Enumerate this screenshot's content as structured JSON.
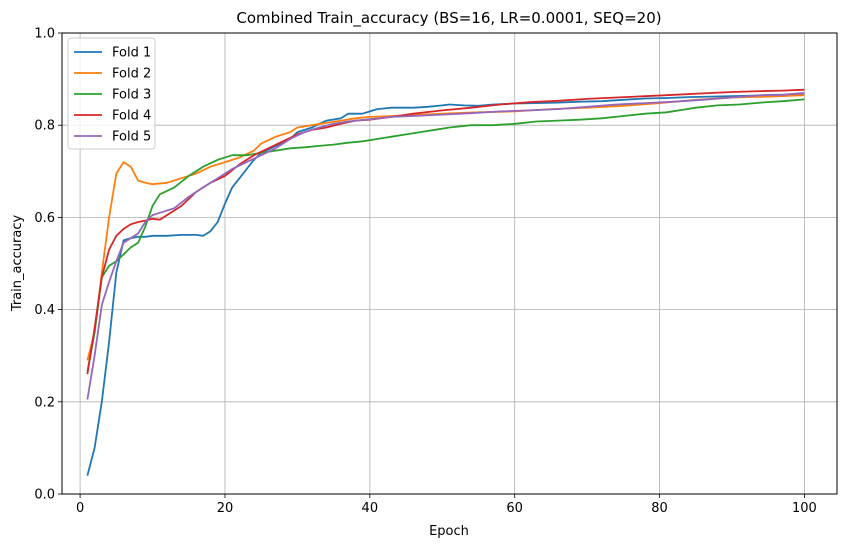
{
  "chart_data": {
    "type": "line",
    "title": "Combined Train_accuracy (BS=16, LR=0.0001, SEQ=20)",
    "xlabel": "Epoch",
    "ylabel": "Train_accuracy",
    "xlim": [
      -2.5,
      104.5
    ],
    "ylim": [
      0.0,
      1.0
    ],
    "xticks": [
      0,
      20,
      40,
      60,
      80,
      100
    ],
    "yticks": [
      0.0,
      0.2,
      0.4,
      0.6,
      0.8,
      1.0
    ],
    "xtick_labels": [
      "0",
      "20",
      "40",
      "60",
      "80",
      "100"
    ],
    "ytick_labels": [
      "0.0",
      "0.2",
      "0.4",
      "0.6",
      "0.8",
      "1.0"
    ],
    "grid": true,
    "legend_position": "top-left",
    "series": [
      {
        "name": "Fold 1",
        "color": "#1f77b4",
        "points": [
          [
            1,
            0.04
          ],
          [
            2,
            0.1
          ],
          [
            3,
            0.2
          ],
          [
            4,
            0.33
          ],
          [
            5,
            0.48
          ],
          [
            6,
            0.55
          ],
          [
            7,
            0.555
          ],
          [
            8,
            0.558
          ],
          [
            9,
            0.558
          ],
          [
            10,
            0.56
          ],
          [
            12,
            0.56
          ],
          [
            14,
            0.562
          ],
          [
            16,
            0.562
          ],
          [
            17,
            0.56
          ],
          [
            18,
            0.57
          ],
          [
            19,
            0.59
          ],
          [
            20,
            0.63
          ],
          [
            21,
            0.665
          ],
          [
            22,
            0.685
          ],
          [
            23,
            0.705
          ],
          [
            24,
            0.725
          ],
          [
            25,
            0.74
          ],
          [
            27,
            0.755
          ],
          [
            29,
            0.77
          ],
          [
            30,
            0.785
          ],
          [
            32,
            0.795
          ],
          [
            34,
            0.81
          ],
          [
            36,
            0.815
          ],
          [
            37,
            0.825
          ],
          [
            39,
            0.825
          ],
          [
            40,
            0.83
          ],
          [
            41,
            0.835
          ],
          [
            43,
            0.838
          ],
          [
            46,
            0.838
          ],
          [
            48,
            0.84
          ],
          [
            50,
            0.843
          ],
          [
            51,
            0.845
          ],
          [
            53,
            0.843
          ],
          [
            55,
            0.842
          ],
          [
            57,
            0.845
          ],
          [
            60,
            0.847
          ],
          [
            63,
            0.848
          ],
          [
            66,
            0.849
          ],
          [
            69,
            0.851
          ],
          [
            72,
            0.852
          ],
          [
            75,
            0.855
          ],
          [
            78,
            0.858
          ],
          [
            81,
            0.859
          ],
          [
            84,
            0.861
          ],
          [
            87,
            0.862
          ],
          [
            90,
            0.863
          ],
          [
            93,
            0.864
          ],
          [
            96,
            0.866
          ],
          [
            100,
            0.866
          ]
        ]
      },
      {
        "name": "Fold 2",
        "color": "#ff7f0e",
        "points": [
          [
            1,
            0.29
          ],
          [
            2,
            0.35
          ],
          [
            3,
            0.48
          ],
          [
            4,
            0.6
          ],
          [
            5,
            0.695
          ],
          [
            6,
            0.72
          ],
          [
            7,
            0.71
          ],
          [
            8,
            0.68
          ],
          [
            9,
            0.675
          ],
          [
            10,
            0.672
          ],
          [
            12,
            0.675
          ],
          [
            14,
            0.685
          ],
          [
            16,
            0.695
          ],
          [
            18,
            0.71
          ],
          [
            20,
            0.72
          ],
          [
            22,
            0.73
          ],
          [
            24,
            0.745
          ],
          [
            25,
            0.76
          ],
          [
            27,
            0.775
          ],
          [
            29,
            0.785
          ],
          [
            30,
            0.795
          ],
          [
            32,
            0.8
          ],
          [
            34,
            0.805
          ],
          [
            36,
            0.81
          ],
          [
            38,
            0.815
          ],
          [
            40,
            0.818
          ],
          [
            43,
            0.82
          ],
          [
            46,
            0.822
          ],
          [
            50,
            0.825
          ],
          [
            55,
            0.828
          ],
          [
            60,
            0.83
          ],
          [
            65,
            0.835
          ],
          [
            70,
            0.838
          ],
          [
            75,
            0.842
          ],
          [
            80,
            0.848
          ],
          [
            85,
            0.855
          ],
          [
            90,
            0.86
          ],
          [
            95,
            0.862
          ],
          [
            100,
            0.865
          ]
        ]
      },
      {
        "name": "Fold 3",
        "color": "#2ca02c",
        "points": [
          [
            1,
            0.265
          ],
          [
            2,
            0.35
          ],
          [
            3,
            0.47
          ],
          [
            4,
            0.495
          ],
          [
            5,
            0.505
          ],
          [
            6,
            0.52
          ],
          [
            7,
            0.535
          ],
          [
            8,
            0.545
          ],
          [
            9,
            0.58
          ],
          [
            10,
            0.625
          ],
          [
            11,
            0.65
          ],
          [
            13,
            0.665
          ],
          [
            15,
            0.69
          ],
          [
            17,
            0.71
          ],
          [
            19,
            0.725
          ],
          [
            21,
            0.735
          ],
          [
            23,
            0.735
          ],
          [
            25,
            0.74
          ],
          [
            27,
            0.745
          ],
          [
            29,
            0.75
          ],
          [
            31,
            0.752
          ],
          [
            33,
            0.755
          ],
          [
            35,
            0.758
          ],
          [
            37,
            0.762
          ],
          [
            39,
            0.765
          ],
          [
            41,
            0.77
          ],
          [
            43,
            0.775
          ],
          [
            45,
            0.78
          ],
          [
            47,
            0.785
          ],
          [
            49,
            0.79
          ],
          [
            51,
            0.795
          ],
          [
            54,
            0.8
          ],
          [
            57,
            0.8
          ],
          [
            60,
            0.803
          ],
          [
            63,
            0.808
          ],
          [
            66,
            0.81
          ],
          [
            69,
            0.812
          ],
          [
            72,
            0.815
          ],
          [
            75,
            0.82
          ],
          [
            78,
            0.825
          ],
          [
            81,
            0.828
          ],
          [
            83,
            0.833
          ],
          [
            85,
            0.838
          ],
          [
            88,
            0.843
          ],
          [
            91,
            0.845
          ],
          [
            94,
            0.849
          ],
          [
            97,
            0.852
          ],
          [
            100,
            0.856
          ]
        ]
      },
      {
        "name": "Fold 4",
        "color": "#d62728",
        "points": [
          [
            1,
            0.26
          ],
          [
            2,
            0.36
          ],
          [
            3,
            0.47
          ],
          [
            4,
            0.53
          ],
          [
            5,
            0.56
          ],
          [
            6,
            0.575
          ],
          [
            7,
            0.585
          ],
          [
            8,
            0.59
          ],
          [
            9,
            0.593
          ],
          [
            10,
            0.597
          ],
          [
            11,
            0.595
          ],
          [
            12,
            0.605
          ],
          [
            14,
            0.625
          ],
          [
            16,
            0.655
          ],
          [
            18,
            0.675
          ],
          [
            20,
            0.69
          ],
          [
            22,
            0.715
          ],
          [
            24,
            0.735
          ],
          [
            26,
            0.75
          ],
          [
            28,
            0.765
          ],
          [
            30,
            0.78
          ],
          [
            32,
            0.79
          ],
          [
            34,
            0.795
          ],
          [
            36,
            0.803
          ],
          [
            38,
            0.81
          ],
          [
            40,
            0.812
          ],
          [
            43,
            0.818
          ],
          [
            46,
            0.825
          ],
          [
            50,
            0.832
          ],
          [
            54,
            0.838
          ],
          [
            58,
            0.845
          ],
          [
            62,
            0.85
          ],
          [
            66,
            0.853
          ],
          [
            70,
            0.857
          ],
          [
            74,
            0.86
          ],
          [
            78,
            0.863
          ],
          [
            82,
            0.866
          ],
          [
            86,
            0.869
          ],
          [
            90,
            0.872
          ],
          [
            94,
            0.874
          ],
          [
            97,
            0.875
          ],
          [
            100,
            0.877
          ]
        ]
      },
      {
        "name": "Fold 5",
        "color": "#9467bd",
        "points": [
          [
            1,
            0.205
          ],
          [
            2,
            0.3
          ],
          [
            3,
            0.41
          ],
          [
            4,
            0.46
          ],
          [
            5,
            0.505
          ],
          [
            6,
            0.545
          ],
          [
            7,
            0.555
          ],
          [
            8,
            0.565
          ],
          [
            9,
            0.59
          ],
          [
            10,
            0.605
          ],
          [
            11,
            0.61
          ],
          [
            13,
            0.62
          ],
          [
            15,
            0.645
          ],
          [
            17,
            0.665
          ],
          [
            19,
            0.685
          ],
          [
            21,
            0.705
          ],
          [
            23,
            0.72
          ],
          [
            25,
            0.735
          ],
          [
            27,
            0.75
          ],
          [
            29,
            0.77
          ],
          [
            31,
            0.785
          ],
          [
            33,
            0.795
          ],
          [
            35,
            0.803
          ],
          [
            37,
            0.808
          ],
          [
            40,
            0.813
          ],
          [
            43,
            0.818
          ],
          [
            46,
            0.82
          ],
          [
            50,
            0.823
          ],
          [
            54,
            0.826
          ],
          [
            58,
            0.83
          ],
          [
            62,
            0.832
          ],
          [
            66,
            0.835
          ],
          [
            70,
            0.84
          ],
          [
            74,
            0.845
          ],
          [
            78,
            0.848
          ],
          [
            82,
            0.851
          ],
          [
            86,
            0.855
          ],
          [
            90,
            0.86
          ],
          [
            94,
            0.865
          ],
          [
            97,
            0.866
          ],
          [
            100,
            0.87
          ]
        ]
      }
    ]
  }
}
